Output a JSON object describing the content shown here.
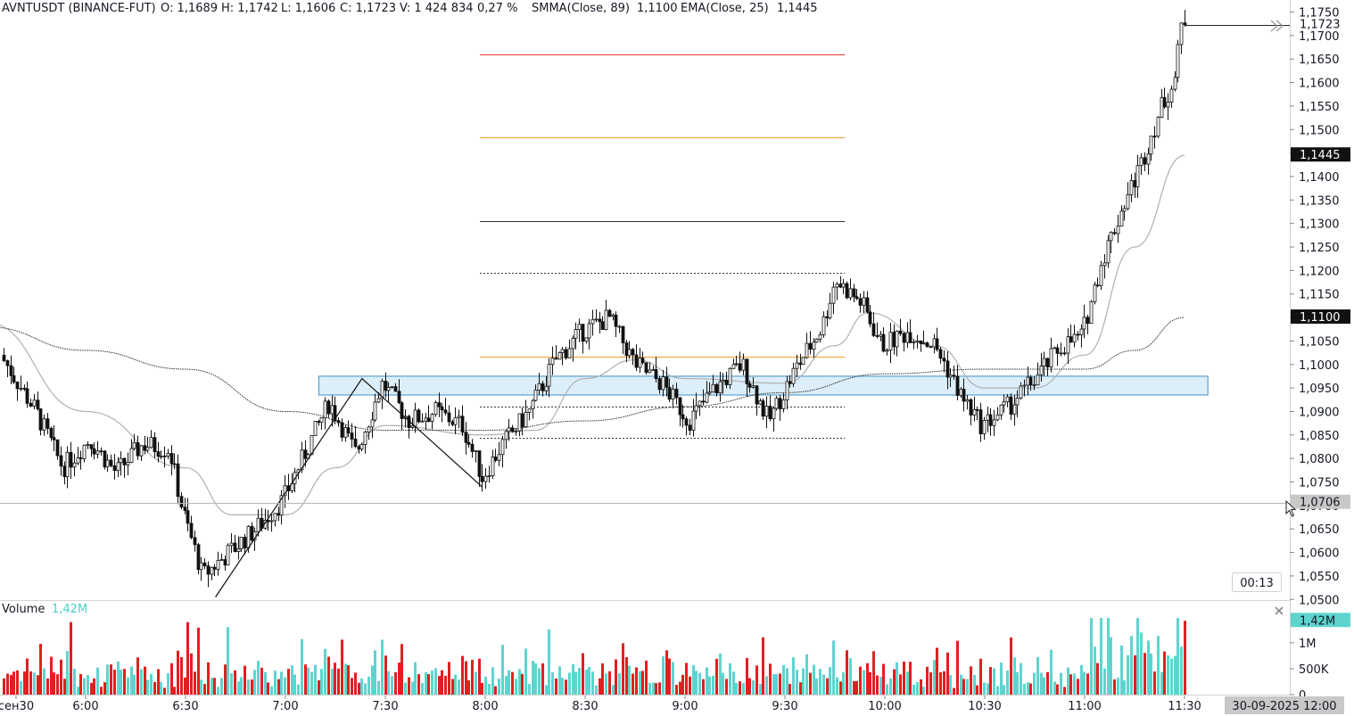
{
  "legend": {
    "symbol": "AVNTUSDT (BINANCE-FUT)",
    "open": "O: 1,1689",
    "high": "H: 1,1742",
    "low": "L: 1,1606",
    "close": "C: 1,1723",
    "volume": "V: 1 424 834",
    "change": "0,27 %",
    "smma_label": "SMMA(Close, 89)",
    "smma_value": "1,1100",
    "ema_label": "EMA(Close, 25)",
    "ema_value": "1,1445"
  },
  "volume_pane": {
    "label": "Volume",
    "value": "1,42M",
    "close_icon": "close-icon"
  },
  "price_axis": {
    "ticks": [
      "1,1750",
      "1,1700",
      "1,1650",
      "1,1600",
      "1,1550",
      "1,1500",
      "1,1450",
      "1,1400",
      "1,1350",
      "1,1300",
      "1,1250",
      "1,1200",
      "1,1150",
      "1,1100",
      "1,1050",
      "1,1000",
      "1,0950",
      "1,0900",
      "1,0850",
      "1,0800",
      "1,0750",
      "1,0700",
      "1,0650",
      "1,0600",
      "1,0550",
      "1,0500"
    ],
    "last_price_tag": "1,1723",
    "ema_tag": "1,1445",
    "smma_tag": "1,1100",
    "crosshair_tag": "1,0706"
  },
  "volume_axis": {
    "ticks": [
      "1M",
      "500K",
      "0"
    ],
    "tag": "1,42M"
  },
  "time_axis": {
    "ticks": [
      "сен30",
      "6:00",
      "6:30",
      "7:00",
      "7:30",
      "8:00",
      "8:30",
      "9:00",
      "9:30",
      "10:00",
      "10:30",
      "11:00",
      "11:30"
    ],
    "crosshair_date": "30-09-2025 12:00"
  },
  "countdown": "00:13",
  "colors": {
    "up": "#26a69a",
    "down": "#e02020",
    "volume_up": "#5fd4cf",
    "ema": "#b0b0b0",
    "smma": "#333333",
    "zone_fill": "#dbeefa",
    "zone_border": "#3f90c7",
    "fib_red": "#e53935",
    "fib_orange": "#f0a030"
  },
  "chart_data": {
    "type": "candlestick",
    "price_range": [
      1.049,
      1.176
    ],
    "price_points": [
      {
        "t": "5:30",
        "p": 1.108
      },
      {
        "t": "5:38",
        "p": 1.099
      },
      {
        "t": "5:46",
        "p": 1.09
      },
      {
        "t": "5:54",
        "p": 1.078
      },
      {
        "t": "6:02",
        "p": 1.084
      },
      {
        "t": "6:10",
        "p": 1.077
      },
      {
        "t": "6:18",
        "p": 1.083
      },
      {
        "t": "6:26",
        "p": 1.082
      },
      {
        "t": "6:30",
        "p": 1.069
      },
      {
        "t": "6:36",
        "p": 1.055
      },
      {
        "t": "6:44",
        "p": 1.06
      },
      {
        "t": "6:52",
        "p": 1.065
      },
      {
        "t": "7:00",
        "p": 1.071
      },
      {
        "t": "7:08",
        "p": 1.083
      },
      {
        "t": "7:14",
        "p": 1.092
      },
      {
        "t": "7:22",
        "p": 1.081
      },
      {
        "t": "7:30",
        "p": 1.096
      },
      {
        "t": "7:38",
        "p": 1.088
      },
      {
        "t": "7:46",
        "p": 1.09
      },
      {
        "t": "7:54",
        "p": 1.087
      },
      {
        "t": "8:00",
        "p": 1.076
      },
      {
        "t": "8:06",
        "p": 1.083
      },
      {
        "t": "8:14",
        "p": 1.09
      },
      {
        "t": "8:22",
        "p": 1.101
      },
      {
        "t": "8:30",
        "p": 1.107
      },
      {
        "t": "8:38",
        "p": 1.11
      },
      {
        "t": "8:46",
        "p": 1.1
      },
      {
        "t": "8:54",
        "p": 1.096
      },
      {
        "t": "9:02",
        "p": 1.088
      },
      {
        "t": "9:10",
        "p": 1.095
      },
      {
        "t": "9:18",
        "p": 1.1
      },
      {
        "t": "9:26",
        "p": 1.088
      },
      {
        "t": "9:34",
        "p": 1.099
      },
      {
        "t": "9:42",
        "p": 1.108
      },
      {
        "t": "9:46",
        "p": 1.118
      },
      {
        "t": "9:54",
        "p": 1.113
      },
      {
        "t": "10:00",
        "p": 1.104
      },
      {
        "t": "10:08",
        "p": 1.107
      },
      {
        "t": "10:16",
        "p": 1.104
      },
      {
        "t": "10:24",
        "p": 1.093
      },
      {
        "t": "10:30",
        "p": 1.087
      },
      {
        "t": "10:38",
        "p": 1.091
      },
      {
        "t": "10:46",
        "p": 1.097
      },
      {
        "t": "10:54",
        "p": 1.104
      },
      {
        "t": "11:00",
        "p": 1.106
      },
      {
        "t": "11:06",
        "p": 1.122
      },
      {
        "t": "11:12",
        "p": 1.133
      },
      {
        "t": "11:18",
        "p": 1.143
      },
      {
        "t": "11:24",
        "p": 1.155
      },
      {
        "t": "11:28",
        "p": 1.161
      },
      {
        "t": "11:30",
        "p": 1.1723
      }
    ],
    "ema_25": [
      {
        "t": "5:30",
        "p": 1.109
      },
      {
        "t": "6:00",
        "p": 1.09
      },
      {
        "t": "6:30",
        "p": 1.078
      },
      {
        "t": "6:44",
        "p": 1.068
      },
      {
        "t": "7:00",
        "p": 1.068
      },
      {
        "t": "7:15",
        "p": 1.078
      },
      {
        "t": "7:30",
        "p": 1.087
      },
      {
        "t": "8:00",
        "p": 1.085
      },
      {
        "t": "8:15",
        "p": 1.086
      },
      {
        "t": "8:30",
        "p": 1.097
      },
      {
        "t": "8:45",
        "p": 1.101
      },
      {
        "t": "9:00",
        "p": 1.097
      },
      {
        "t": "9:30",
        "p": 1.096
      },
      {
        "t": "9:45",
        "p": 1.104
      },
      {
        "t": "9:55",
        "p": 1.111
      },
      {
        "t": "10:15",
        "p": 1.104
      },
      {
        "t": "10:30",
        "p": 1.095
      },
      {
        "t": "10:45",
        "p": 1.095
      },
      {
        "t": "11:00",
        "p": 1.102
      },
      {
        "t": "11:15",
        "p": 1.125
      },
      {
        "t": "11:30",
        "p": 1.1445
      }
    ],
    "smma_89": [
      {
        "t": "5:30",
        "p": 1.108
      },
      {
        "t": "6:00",
        "p": 1.103
      },
      {
        "t": "6:30",
        "p": 1.099
      },
      {
        "t": "7:00",
        "p": 1.09
      },
      {
        "t": "7:30",
        "p": 1.086
      },
      {
        "t": "8:00",
        "p": 1.086
      },
      {
        "t": "8:30",
        "p": 1.088
      },
      {
        "t": "9:00",
        "p": 1.091
      },
      {
        "t": "9:30",
        "p": 1.094
      },
      {
        "t": "10:00",
        "p": 1.098
      },
      {
        "t": "10:30",
        "p": 1.099
      },
      {
        "t": "11:00",
        "p": 1.099
      },
      {
        "t": "11:15",
        "p": 1.103
      },
      {
        "t": "11:30",
        "p": 1.11
      }
    ],
    "zone": {
      "from": "7:10",
      "to": "11:37",
      "low": 1.0935,
      "high": 1.0975
    },
    "fib_levels": [
      {
        "price": 1.166,
        "color": "#e53935",
        "style": "solid"
      },
      {
        "price": 1.1483,
        "color": "#f0a030",
        "style": "solid"
      },
      {
        "price": 1.1305,
        "color": "#333333",
        "style": "solid"
      },
      {
        "price": 1.1195,
        "color": "#333333",
        "style": "dotted"
      },
      {
        "price": 1.1017,
        "color": "#f0a030",
        "style": "solid"
      },
      {
        "price": 1.091,
        "color": "#333333",
        "style": "dotted"
      },
      {
        "price": 1.0843,
        "color": "#333333",
        "style": "dotted"
      }
    ],
    "fib_span": {
      "from": "8:00",
      "to": "9:48"
    },
    "zigzag": [
      {
        "t": "6:39",
        "p": 1.0505
      },
      {
        "t": "7:23",
        "p": 1.097
      },
      {
        "t": "7:59",
        "p": 1.074
      }
    ],
    "volume_range": [
      0,
      1550000
    ]
  }
}
